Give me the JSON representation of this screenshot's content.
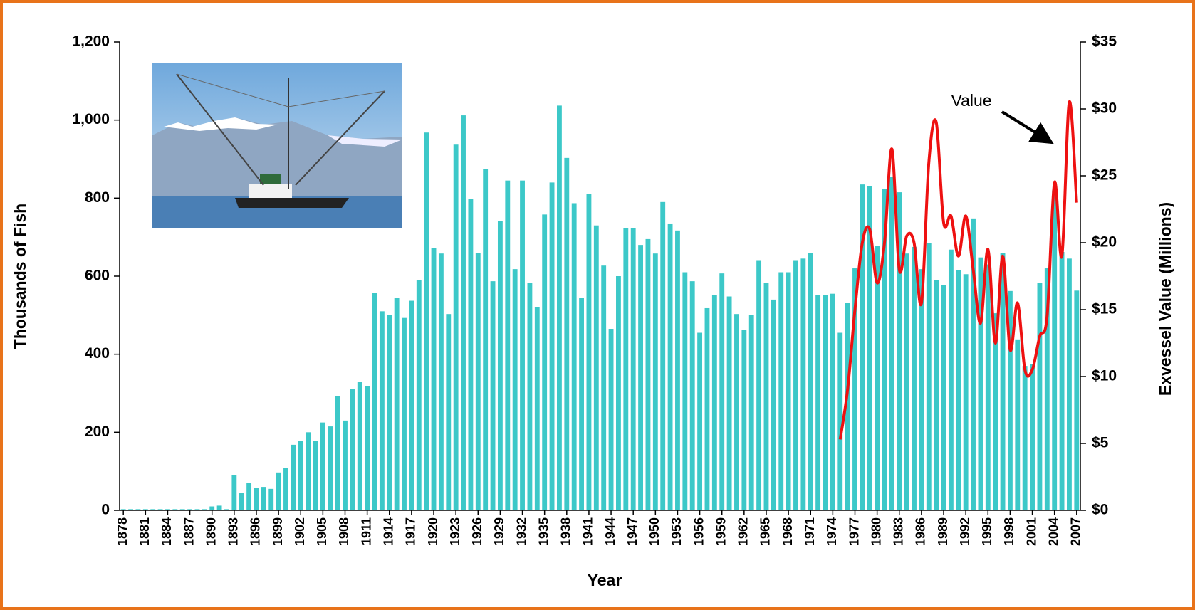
{
  "chart_data": {
    "type": "bar_line",
    "x_label": "Year",
    "y_label": "Thousands of Fish",
    "y2_label": "Exvessel Value (Millions)",
    "x": [
      1878,
      1879,
      1880,
      1881,
      1882,
      1883,
      1884,
      1885,
      1886,
      1887,
      1888,
      1889,
      1890,
      1891,
      1892,
      1893,
      1894,
      1895,
      1896,
      1897,
      1898,
      1899,
      1900,
      1901,
      1902,
      1903,
      1904,
      1905,
      1906,
      1907,
      1908,
      1909,
      1910,
      1911,
      1912,
      1913,
      1914,
      1915,
      1916,
      1917,
      1918,
      1919,
      1920,
      1921,
      1922,
      1923,
      1924,
      1925,
      1926,
      1927,
      1928,
      1929,
      1930,
      1931,
      1932,
      1933,
      1934,
      1935,
      1936,
      1937,
      1938,
      1939,
      1940,
      1941,
      1942,
      1943,
      1944,
      1945,
      1946,
      1947,
      1948,
      1949,
      1950,
      1951,
      1952,
      1953,
      1954,
      1955,
      1956,
      1957,
      1958,
      1959,
      1960,
      1961,
      1962,
      1963,
      1964,
      1965,
      1966,
      1967,
      1968,
      1969,
      1970,
      1971,
      1972,
      1973,
      1974,
      1975,
      1976,
      1977,
      1978,
      1979,
      1980,
      1981,
      1982,
      1983,
      1984,
      1985,
      1986,
      1987,
      1988,
      1989,
      1990,
      1991,
      1992,
      1993,
      1994,
      1995,
      1996,
      1997,
      1998,
      1999,
      2000,
      2001,
      2002,
      2003,
      2004,
      2005,
      2006,
      2007
    ],
    "xlim": [
      1877.5,
      2007.5
    ],
    "xticks": [
      1878,
      1881,
      1884,
      1887,
      1890,
      1893,
      1896,
      1899,
      1902,
      1905,
      1908,
      1911,
      1914,
      1917,
      1920,
      1923,
      1926,
      1929,
      1932,
      1935,
      1938,
      1941,
      1944,
      1947,
      1950,
      1953,
      1956,
      1959,
      1962,
      1965,
      1968,
      1971,
      1974,
      1977,
      1980,
      1983,
      1986,
      1989,
      1992,
      1995,
      1998,
      2001,
      2004,
      2007
    ],
    "ylim": [
      0,
      1200
    ],
    "yticks": [
      0,
      200,
      400,
      600,
      800,
      {
        "value": 1000,
        "label": "1,000"
      },
      {
        "value": 1200,
        "label": "1,200"
      }
    ],
    "y2lim": [
      0,
      35
    ],
    "y2ticks": [
      {
        "value": 0,
        "label": "$0"
      },
      {
        "value": 5,
        "label": "$5"
      },
      {
        "value": 10,
        "label": "$10"
      },
      {
        "value": 15,
        "label": "$15"
      },
      {
        "value": 20,
        "label": "$20"
      },
      {
        "value": 25,
        "label": "$25"
      },
      {
        "value": 30,
        "label": "$30"
      },
      {
        "value": 35,
        "label": "$35"
      }
    ],
    "series": [
      {
        "color": "#3cc8c8",
        "values": [
          3,
          3,
          3,
          3,
          3,
          3,
          3,
          3,
          3,
          3,
          3,
          3,
          10,
          12,
          3,
          90,
          45,
          70,
          58,
          60,
          55,
          97,
          108,
          168,
          178,
          200,
          178,
          225,
          215,
          293,
          230,
          310,
          330,
          318,
          558,
          510,
          500,
          545,
          493,
          537,
          590,
          968,
          672,
          658,
          503,
          937,
          1012,
          797,
          660,
          875,
          587,
          742,
          845,
          618,
          845,
          583,
          520,
          758,
          840,
          1037,
          903,
          787,
          545,
          810,
          730,
          627,
          465,
          600,
          723,
          723,
          680,
          695,
          658,
          790,
          735,
          717,
          610,
          587,
          455,
          518,
          552,
          607,
          548,
          503,
          462,
          500,
          641,
          583,
          540,
          610,
          610,
          641,
          645,
          660,
          552,
          552,
          555,
          455,
          532,
          620,
          835,
          830,
          677,
          823,
          855,
          815,
          658,
          675,
          618,
          685,
          590,
          577,
          668,
          615,
          605,
          748,
          648,
          630,
          505,
          660,
          562,
          438,
          370,
          375,
          582,
          620,
          820,
          662,
          645,
          563
        ]
      },
      {
        "name": "Value",
        "color": "#ee1111",
        "axis": "y2",
        "x": [
          1975,
          1976,
          1977,
          1978,
          1979,
          1980,
          1981,
          1982,
          1983,
          1984,
          1985,
          1986,
          1987,
          1988,
          1989,
          1990,
          1991,
          1992,
          1993,
          1994,
          1995,
          1996,
          1997,
          1998,
          1999,
          2000,
          2001,
          2002,
          2003,
          2004,
          2005,
          2006,
          2007
        ],
        "values": [
          5.3,
          9,
          15,
          20,
          21,
          17,
          20,
          27,
          18,
          20.5,
          20,
          15.5,
          26,
          29,
          21.5,
          22,
          19,
          22,
          18,
          14,
          19.5,
          12.5,
          19,
          12,
          15.5,
          10.5,
          10.5,
          13,
          14.5,
          24.5,
          19,
          30.5,
          23
        ]
      }
    ]
  }
}
